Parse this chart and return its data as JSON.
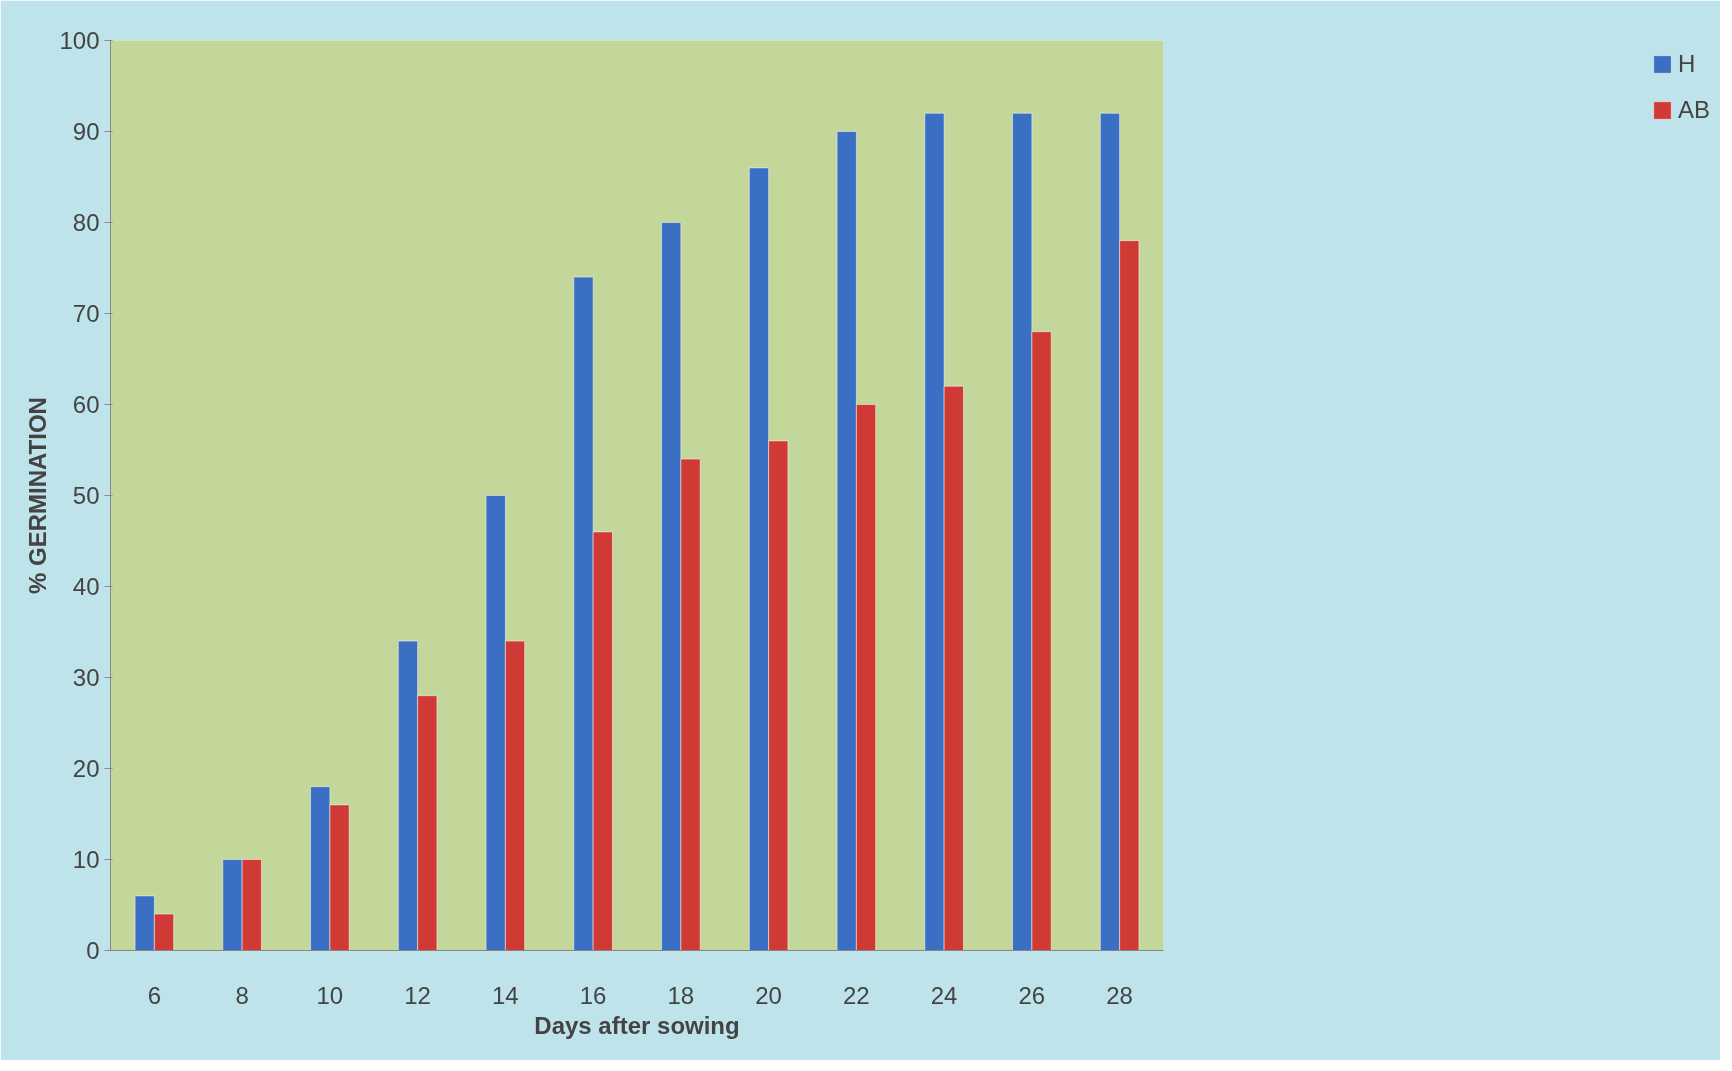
{
  "chart_data": {
    "type": "bar",
    "xlabel": "Days after sowing",
    "ylabel": "% GERMINATION",
    "categories": [
      "6",
      "8",
      "10",
      "12",
      "14",
      "16",
      "18",
      "20",
      "22",
      "24",
      "26",
      "28"
    ],
    "series": [
      {
        "name": "H",
        "color": "#3a6fc4",
        "values": [
          6,
          10,
          18,
          34,
          50,
          74,
          80,
          86,
          90,
          92,
          92,
          92
        ]
      },
      {
        "name": "AB",
        "color": "#d03a35",
        "values": [
          4,
          10,
          16,
          28,
          34,
          46,
          54,
          56,
          60,
          62,
          68,
          78
        ]
      }
    ],
    "ylim": [
      0,
      100
    ],
    "yticks": [
      0,
      10,
      20,
      30,
      40,
      50,
      60,
      70,
      80,
      90,
      100
    ],
    "grid": false,
    "legend": "right"
  }
}
